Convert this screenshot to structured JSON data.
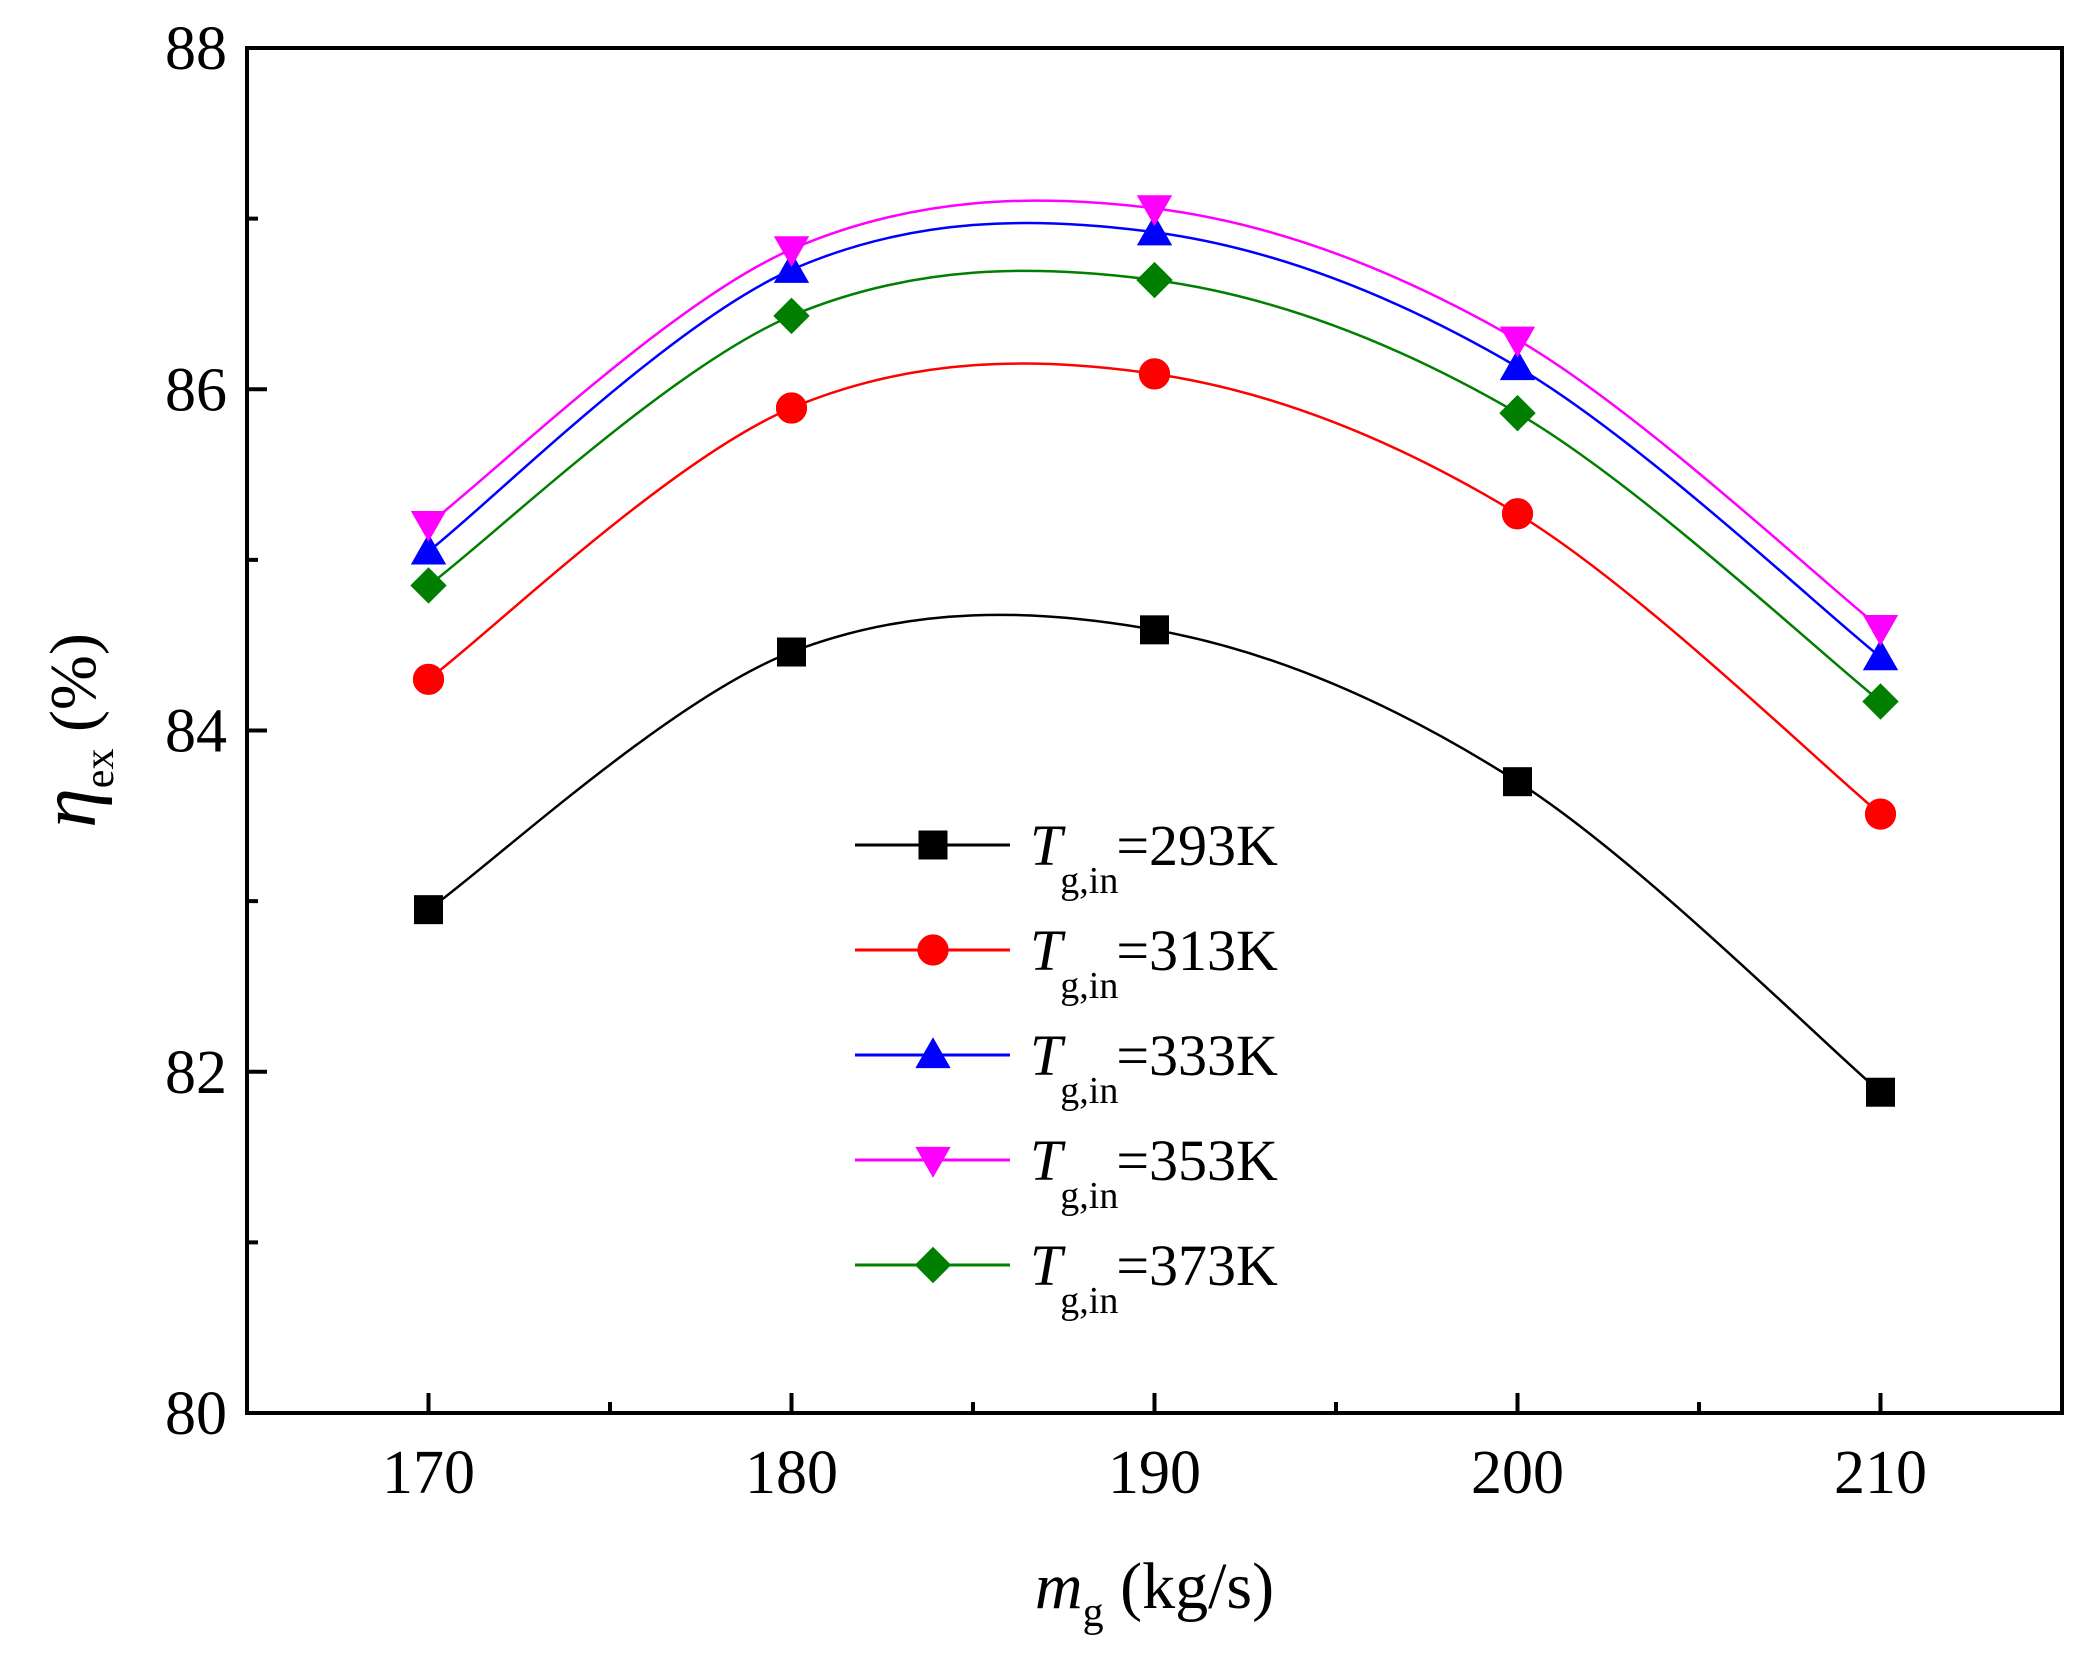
{
  "chart_data": {
    "type": "line",
    "xlabel": {
      "symbol": "m",
      "subscript": "g",
      "unit": " (kg/s)"
    },
    "ylabel": {
      "symbol": "η",
      "subscript": "ex",
      "unit": " (%)"
    },
    "xlim": [
      165,
      215
    ],
    "ylim": [
      80,
      88
    ],
    "x_ticks": [
      170,
      180,
      190,
      200,
      210
    ],
    "x_tick_labels": [
      "170",
      "180",
      "190",
      "200",
      "210"
    ],
    "y_ticks": [
      80,
      82,
      84,
      86,
      88
    ],
    "y_tick_labels": [
      "80",
      "82",
      "84",
      "86",
      "88"
    ],
    "x_minor_step": 5,
    "y_minor_step": 1,
    "grid": false,
    "legend_position": "center-bottom",
    "x": [
      170,
      180,
      190,
      200,
      210
    ],
    "series": [
      {
        "label_symbol": "T",
        "label_subscript": "g,in",
        "label_value": "=293K",
        "color": "#000000",
        "marker": "square",
        "values": [
          82.95,
          84.46,
          84.59,
          83.7,
          81.88
        ]
      },
      {
        "label_symbol": "T",
        "label_subscript": "g,in",
        "label_value": "=313K",
        "color": "#ff0000",
        "marker": "circle",
        "values": [
          84.3,
          85.89,
          86.09,
          85.27,
          83.51
        ]
      },
      {
        "label_symbol": "T",
        "label_subscript": "g,in",
        "label_value": "=333K",
        "color": "#0000ff",
        "marker": "triangle-up",
        "values": [
          85.05,
          86.7,
          86.92,
          86.13,
          84.43
        ]
      },
      {
        "label_symbol": "T",
        "label_subscript": "g,in",
        "label_value": "=353K",
        "color": "#ff00ff",
        "marker": "triangle-down",
        "values": [
          85.21,
          86.82,
          87.06,
          86.29,
          84.6
        ]
      },
      {
        "label_symbol": "T",
        "label_subscript": "g,in",
        "label_value": "=373K",
        "color": "#007f00",
        "marker": "diamond",
        "values": [
          84.85,
          86.43,
          86.64,
          85.86,
          84.17
        ]
      }
    ]
  }
}
